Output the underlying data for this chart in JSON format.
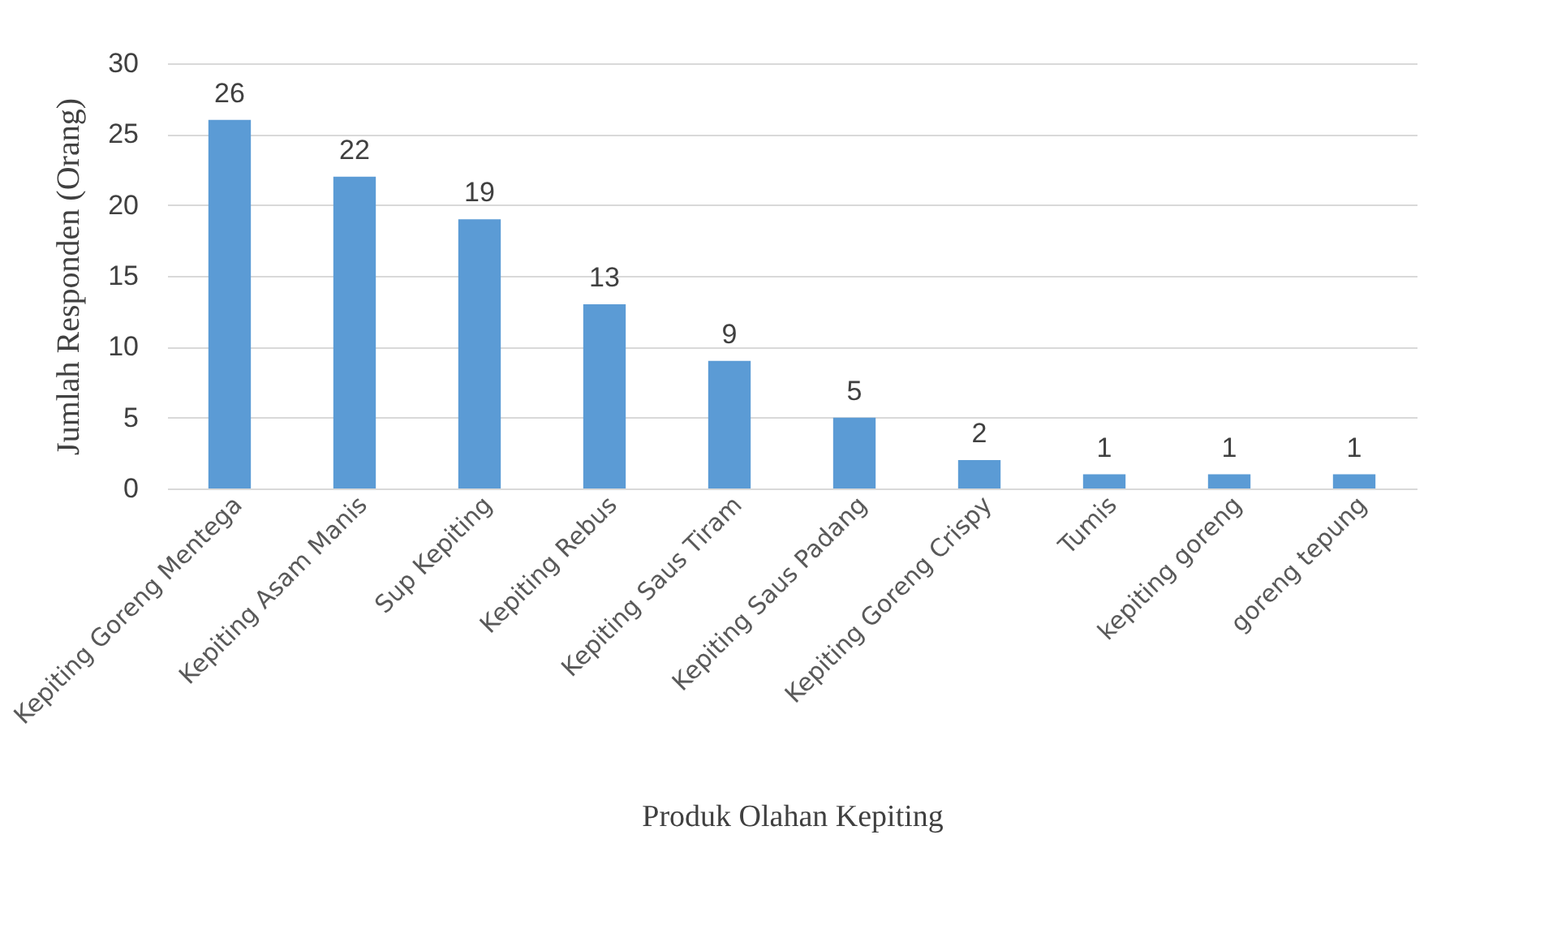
{
  "chart_data": {
    "type": "bar",
    "xlabel": "Produk Olahan Kepiting",
    "ylabel": "Jumlah Responden (Orang)",
    "categories": [
      "Kepiting Goreng Mentega",
      "Kepiting Asam Manis",
      "Sup Kepiting",
      "Kepiting Rebus",
      "Kepiting Saus Tiram",
      "Kepiting Saus Padang",
      "Kepiting Goreng Crispy",
      "Tumis",
      "kepiting goreng",
      "goreng tepung"
    ],
    "values": [
      26,
      22,
      19,
      13,
      9,
      5,
      2,
      1,
      1,
      1
    ],
    "color": "#5b9bd5",
    "ylim": [
      0,
      30
    ],
    "yticks": [
      0,
      5,
      10,
      15,
      20,
      25,
      30
    ],
    "grid": "y",
    "data_labels": true
  }
}
